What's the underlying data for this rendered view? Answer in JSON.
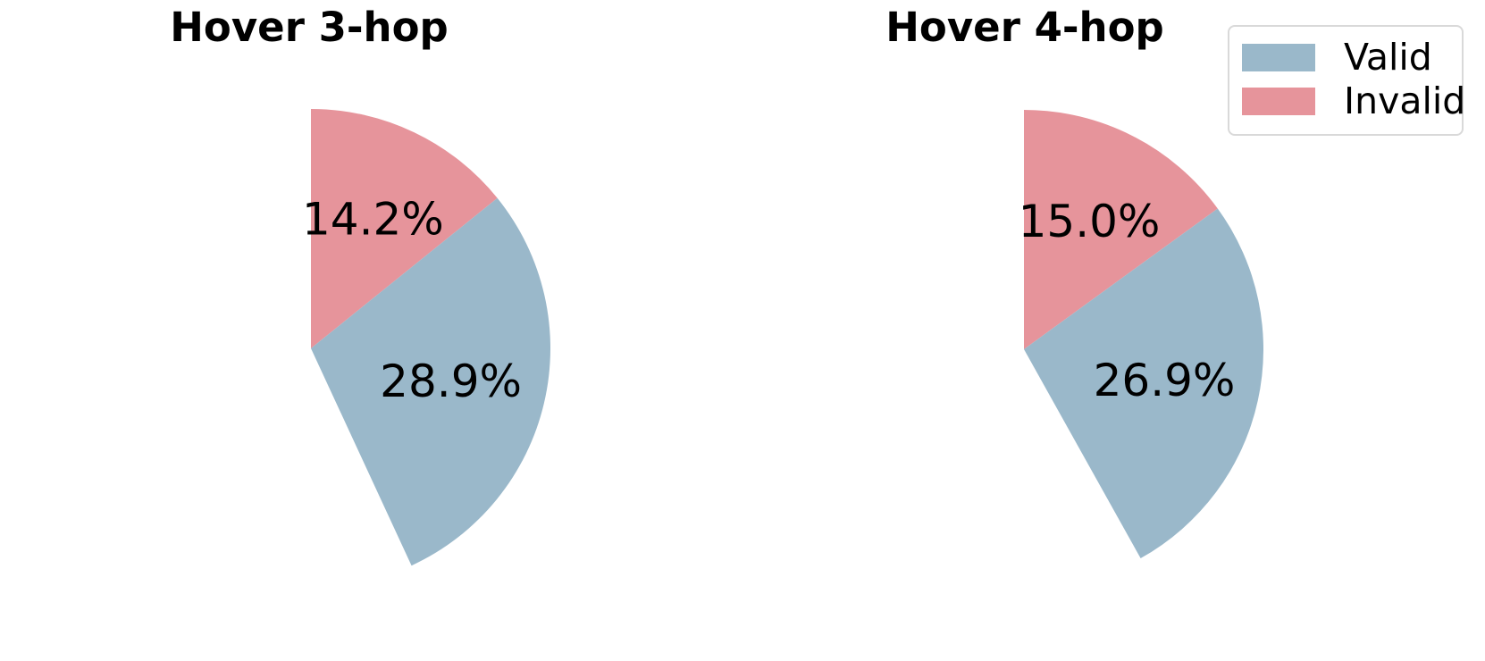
{
  "colors": {
    "valid": "#9ab8ca",
    "invalid": "#e6949b",
    "label_text": "#000000",
    "legend_border": "#d9d9d9",
    "background": "#ffffff"
  },
  "legend": {
    "items": [
      {
        "label": "Valid",
        "color_key": "valid"
      },
      {
        "label": "Invalid",
        "color_key": "invalid"
      }
    ]
  },
  "chart_data": [
    {
      "type": "pie",
      "title": "Hover 3-hop",
      "start_angle_deg": 90,
      "clockwise": true,
      "normalized": false,
      "slices": [
        {
          "label": "Invalid",
          "value_pct": 14.2,
          "display": "14.2%",
          "color_key": "invalid"
        },
        {
          "label": "Valid",
          "value_pct": 28.9,
          "display": "28.9%",
          "color_key": "valid"
        }
      ],
      "empty_pct": 56.9,
      "layout_hint": "wedges drawn clockwise from 12 o'clock; remaining 56.9% of circle left blank"
    },
    {
      "type": "pie",
      "title": "Hover 4-hop",
      "start_angle_deg": 90,
      "clockwise": true,
      "normalized": false,
      "slices": [
        {
          "label": "Invalid",
          "value_pct": 15.0,
          "display": "15.0%",
          "color_key": "invalid"
        },
        {
          "label": "Valid",
          "value_pct": 26.9,
          "display": "26.9%",
          "color_key": "valid"
        }
      ],
      "empty_pct": 58.1,
      "layout_hint": "wedges drawn clockwise from 12 o'clock; remaining 58.1% of circle left blank"
    }
  ]
}
